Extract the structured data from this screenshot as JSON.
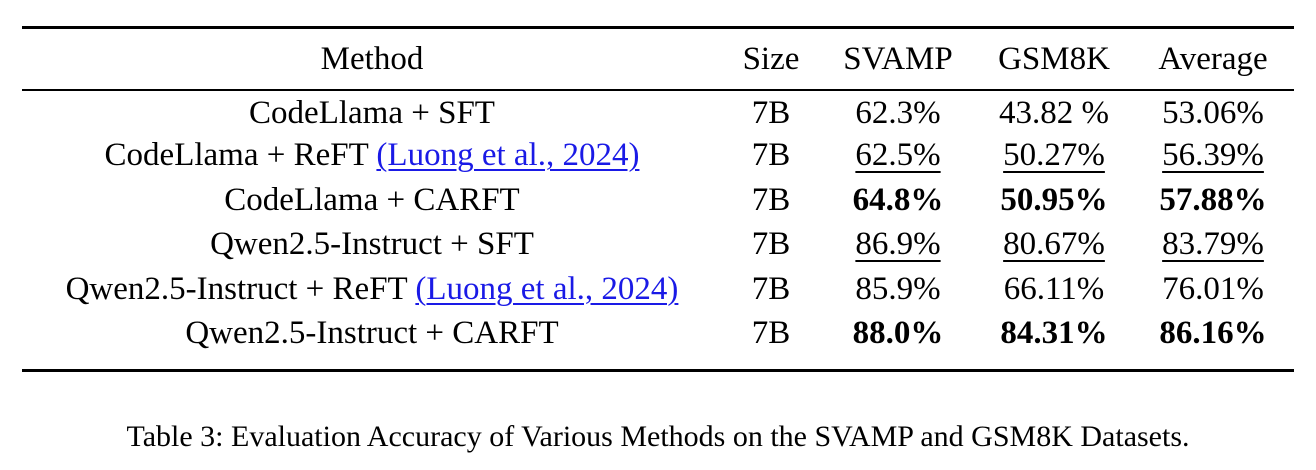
{
  "table": {
    "headers": [
      "Method",
      "Size",
      "SVAMP",
      "GSM8K",
      "Average"
    ],
    "rows": [
      {
        "method": "CodeLlama + SFT",
        "citation": "",
        "size": "7B",
        "svamp": "62.3%",
        "gsm8k": "43.82 %",
        "average": "53.06%"
      },
      {
        "method": "CodeLlama + ReFT",
        "citation": "(Luong et al., 2024)",
        "size": "7B",
        "svamp": "62.5%",
        "gsm8k": "50.27%",
        "average": "56.39%"
      },
      {
        "method": "CodeLlama + CARFT",
        "citation": "",
        "size": "7B",
        "svamp": "64.8%",
        "gsm8k": "50.95%",
        "average": "57.88%"
      },
      {
        "method": "Qwen2.5-Instruct + SFT",
        "citation": "",
        "size": "7B",
        "svamp": "86.9%",
        "gsm8k": "80.67%",
        "average": "83.79%"
      },
      {
        "method": "Qwen2.5-Instruct + ReFT",
        "citation": "(Luong et al., 2024)",
        "size": "7B",
        "svamp": "85.9%",
        "gsm8k": "66.11%",
        "average": "76.01%"
      },
      {
        "method": "Qwen2.5-Instruct + CARFT",
        "citation": "",
        "size": "7B",
        "svamp": "88.0%",
        "gsm8k": "84.31%",
        "average": "86.16%"
      }
    ]
  },
  "caption": "Table 3: Evaluation Accuracy of Various Methods on the SVAMP and GSM8K Datasets.",
  "colors": {
    "citation_link": "#1a1ae6",
    "text": "#000000"
  }
}
